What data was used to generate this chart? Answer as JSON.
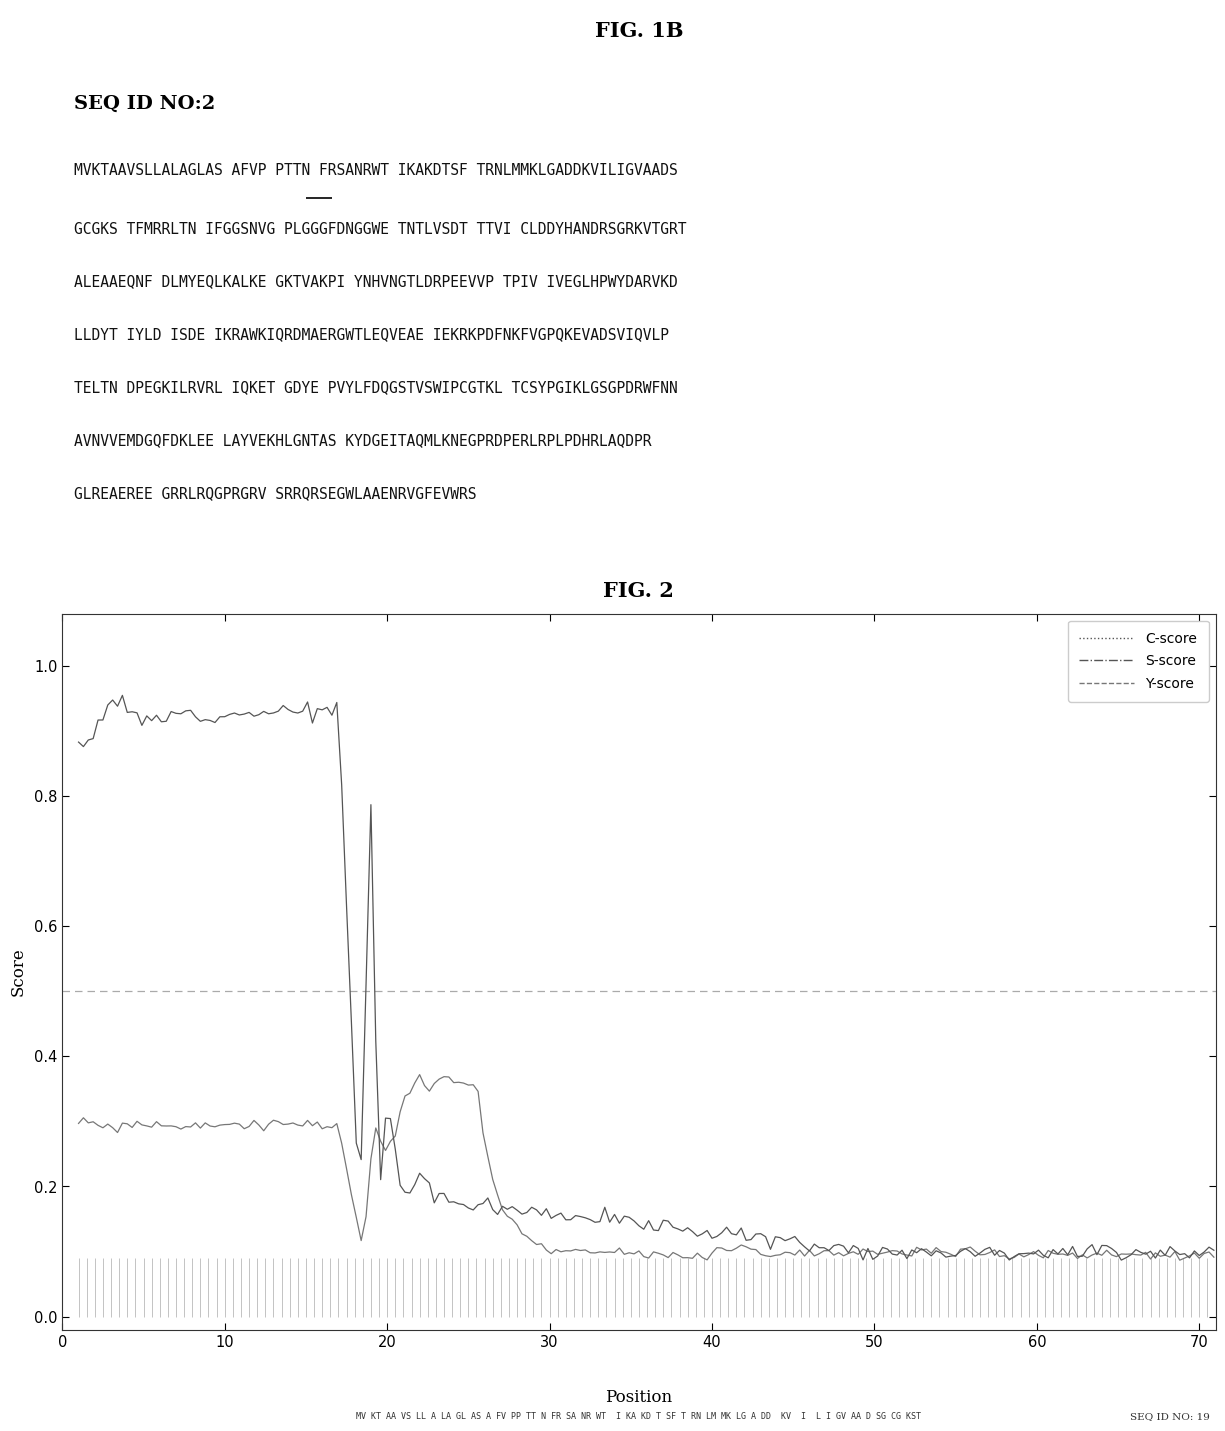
{
  "fig1b_title": "FIG. 1B",
  "seq_id_label": "SEQ ID NO:2",
  "sequence_lines": [
    "MVKTAAVSLLALAGLAS AFVP PTTN FRSANRWT IKAKDTSF TRNLMMKLGADDKVILIGVAADS",
    "GCGKS TFMRRLTN IFGGSNVG PLGGGFDNGGWE TNTLVSDT TTVI CLDDYHANDRSGRKVTGRT",
    "ALEAAEQNF DLMYEQLKALKE GKTVAKPI YNHVNGTLDRPEEVVP TPIV IVEGLHPWYDARVKD",
    "LLDYT IYLD ISDE IKRAWKIQRDMAERGWTLEQVEAE IEKRKPDFNKFVGPQKEVADSVIQVLP",
    "TELTN DPEGKILRVRL IQKET GDYE PVYLFDQGSTVSWIPCGTKL TCSYPGIKLGSGPDRWFNN",
    "AVNVVEMDGQFDKLEE LAYVEKHLGNTAS KYDGEITAQMLKNEGPRDPERLRPLPDHRLAQDPR",
    "GLREAEREE GRRLRQGPRGRV SRRQRSEGWLAAENRVGFEVWRS"
  ],
  "fig2_title": "FIG. 2",
  "xlabel": "Position",
  "ylabel": "Score",
  "ylim": [
    -0.02,
    1.08
  ],
  "xlim": [
    0,
    71
  ],
  "xticks": [
    0,
    10,
    20,
    30,
    40,
    50,
    60,
    70
  ],
  "yticks": [
    0.0,
    0.2,
    0.4,
    0.6,
    0.8,
    1.0
  ],
  "legend_labels": [
    "C-score",
    "S-score",
    "Y-score"
  ],
  "seq_annotation": "MV KT AA VS LL A LA GL AS A FV PP TT N FR SA NR WT  I KA KD T SF T RN LM MK LG A DD  KV  I  L I GV AA D SG CG KST",
  "seq_id_annotation": "SEQ ID NO: 19",
  "line_color": "#666666",
  "threshold_color": "#aaaaaa",
  "background_color": "#ffffff"
}
